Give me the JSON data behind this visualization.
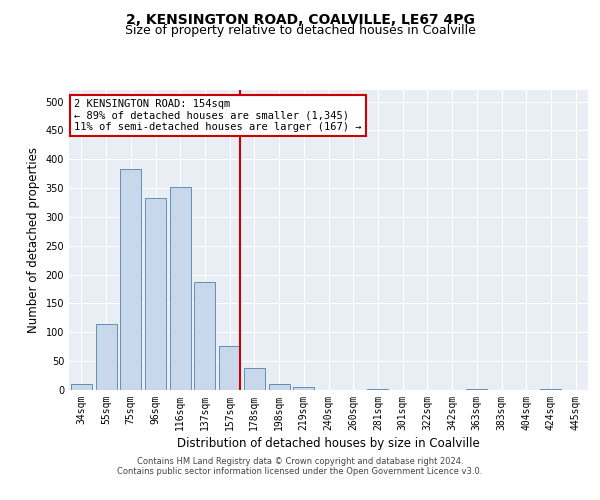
{
  "title_line1": "2, KENSINGTON ROAD, COALVILLE, LE67 4PG",
  "title_line2": "Size of property relative to detached houses in Coalville",
  "xlabel": "Distribution of detached houses by size in Coalville",
  "ylabel": "Number of detached properties",
  "categories": [
    "34sqm",
    "55sqm",
    "75sqm",
    "96sqm",
    "116sqm",
    "137sqm",
    "157sqm",
    "178sqm",
    "198sqm",
    "219sqm",
    "240sqm",
    "260sqm",
    "281sqm",
    "301sqm",
    "322sqm",
    "342sqm",
    "363sqm",
    "383sqm",
    "404sqm",
    "424sqm",
    "445sqm"
  ],
  "values": [
    10,
    115,
    383,
    333,
    352,
    187,
    76,
    38,
    11,
    6,
    0,
    0,
    1,
    0,
    0,
    0,
    2,
    0,
    0,
    2,
    0
  ],
  "bar_color": "#c8d8ea",
  "bar_edge_color": "#6090b8",
  "vline_color": "#cc0000",
  "annotation_text": "2 KENSINGTON ROAD: 154sqm\n← 89% of detached houses are smaller (1,345)\n11% of semi-detached houses are larger (167) →",
  "annotation_box_color": "#ffffff",
  "annotation_box_edge": "#cc0000",
  "ylim": [
    0,
    520
  ],
  "yticks": [
    0,
    50,
    100,
    150,
    200,
    250,
    300,
    350,
    400,
    450,
    500
  ],
  "plot_background": "#e8eef4",
  "footer_line1": "Contains HM Land Registry data © Crown copyright and database right 2024.",
  "footer_line2": "Contains public sector information licensed under the Open Government Licence v3.0.",
  "title_fontsize": 10,
  "subtitle_fontsize": 9,
  "tick_fontsize": 7,
  "ylabel_fontsize": 8.5,
  "xlabel_fontsize": 8.5,
  "annot_fontsize": 7.5,
  "footer_fontsize": 6
}
